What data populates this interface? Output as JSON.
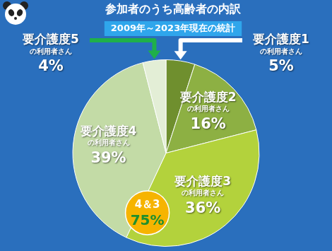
{
  "chart_data": {
    "type": "pie",
    "title": "参加者のうち高齢者の内訳",
    "subtitle": "2009年～2023年現在の統計",
    "categories": [
      "要介護度1\nの利用者さん",
      "要介護度2\nの利用者さん",
      "要介護度3\nの利用者さん",
      "要介護度4\nの利用者さん",
      "要介護度5\nの利用者さん"
    ],
    "values": [
      5,
      16,
      36,
      39,
      4
    ],
    "value_labels": [
      "5%",
      "16%",
      "36%",
      "39%",
      "4%"
    ],
    "colors": [
      "#6f8f2e",
      "#8db043",
      "#b3d23c",
      "#c3dba6",
      "#e3eed6"
    ],
    "data_labels": true,
    "annotations": [
      {
        "label": "4＆3",
        "value": 75,
        "value_label": "75%"
      }
    ]
  }
}
